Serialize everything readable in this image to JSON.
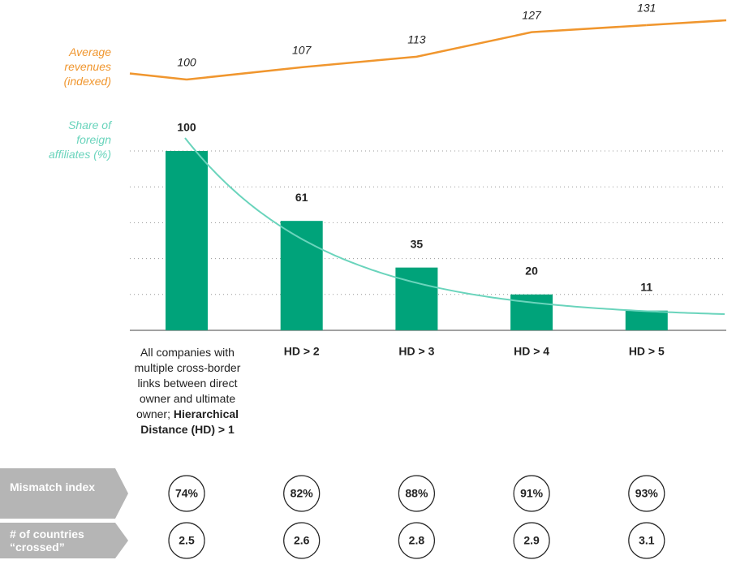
{
  "chart_data": {
    "type": "bar",
    "categories": [
      "All companies with multiple cross-border links between direct owner and ultimate owner;",
      "HD > 2",
      "HD > 3",
      "HD > 4",
      "HD > 5"
    ],
    "first_category_emphasis": "Hierarchical Distance (HD) > 1",
    "series": [
      {
        "name": "Share of foreign affiliates (%)",
        "color": "#00a37a",
        "values": [
          100,
          61,
          35,
          20,
          11
        ]
      },
      {
        "name": "Average revenues (indexed)",
        "color": "#f0962e",
        "values": [
          100,
          107,
          113,
          127,
          131
        ],
        "axis": "y2"
      }
    ],
    "ylim": [
      0,
      100
    ],
    "yticks": [
      20,
      40,
      60,
      80,
      100
    ],
    "y2lim": [
      100,
      131
    ],
    "grid": true,
    "trend_color": "#6ad4bc",
    "rows": [
      {
        "name": "Mismatch index",
        "values": [
          74,
          82,
          88,
          91,
          93
        ],
        "value_labels": [
          "74%",
          "82%",
          "88%",
          "91%",
          "93%"
        ]
      },
      {
        "name": "# of countries “crossed”",
        "values": [
          2.5,
          2.6,
          2.8,
          2.9,
          3.1
        ]
      }
    ]
  }
}
